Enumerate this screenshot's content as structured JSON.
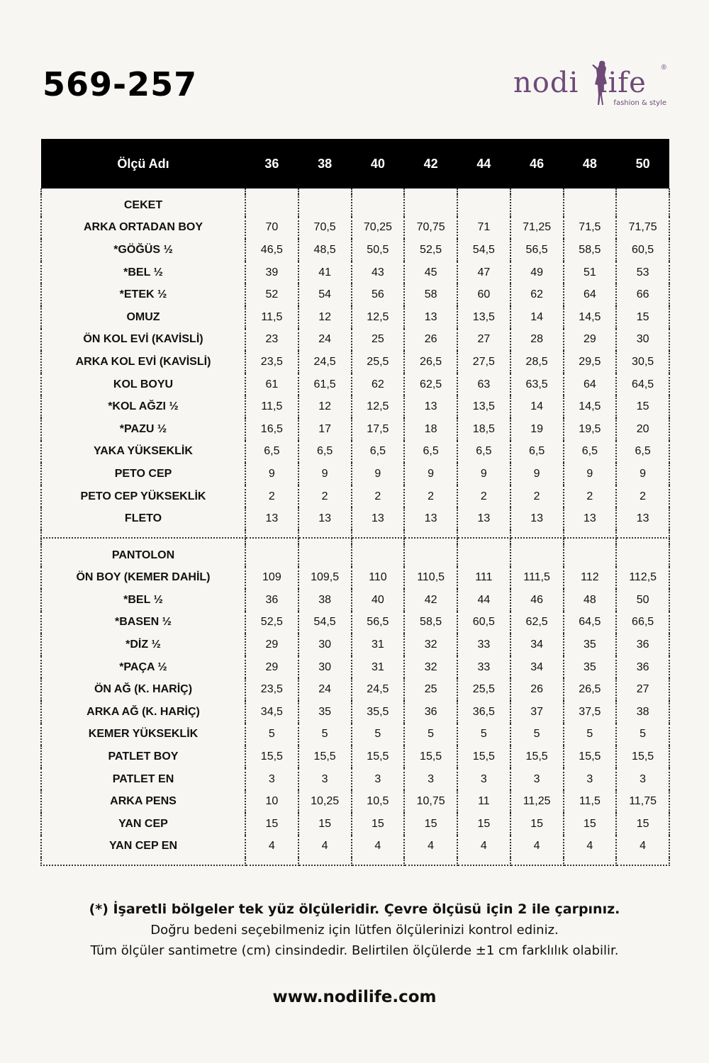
{
  "product_code": "569-257",
  "logo": {
    "text": "nodi life",
    "tagline": "fashion & style",
    "color": "#6e4a78"
  },
  "table": {
    "header": {
      "name": "Ölçü Adı",
      "sizes": [
        "36",
        "38",
        "40",
        "42",
        "44",
        "46",
        "48",
        "50"
      ]
    },
    "sections": [
      {
        "title": "CEKET",
        "rows": [
          {
            "label": "ARKA ORTADAN BOY",
            "values": [
              "70",
              "70,5",
              "70,25",
              "70,75",
              "71",
              "71,25",
              "71,5",
              "71,75"
            ]
          },
          {
            "label": "*GÖĞÜS ½",
            "values": [
              "46,5",
              "48,5",
              "50,5",
              "52,5",
              "54,5",
              "56,5",
              "58,5",
              "60,5"
            ]
          },
          {
            "label": "*BEL ½",
            "values": [
              "39",
              "41",
              "43",
              "45",
              "47",
              "49",
              "51",
              "53"
            ]
          },
          {
            "label": "*ETEK ½",
            "values": [
              "52",
              "54",
              "56",
              "58",
              "60",
              "62",
              "64",
              "66"
            ]
          },
          {
            "label": "OMUZ",
            "values": [
              "11,5",
              "12",
              "12,5",
              "13",
              "13,5",
              "14",
              "14,5",
              "15"
            ]
          },
          {
            "label": "ÖN KOL EVİ (KAVİSLİ)",
            "values": [
              "23",
              "24",
              "25",
              "26",
              "27",
              "28",
              "29",
              "30"
            ]
          },
          {
            "label": "ARKA KOL EVİ (KAVİSLİ)",
            "values": [
              "23,5",
              "24,5",
              "25,5",
              "26,5",
              "27,5",
              "28,5",
              "29,5",
              "30,5"
            ]
          },
          {
            "label": "KOL BOYU",
            "values": [
              "61",
              "61,5",
              "62",
              "62,5",
              "63",
              "63,5",
              "64",
              "64,5"
            ]
          },
          {
            "label": "*KOL AĞZI ½",
            "values": [
              "11,5",
              "12",
              "12,5",
              "13",
              "13,5",
              "14",
              "14,5",
              "15"
            ]
          },
          {
            "label": "*PAZU ½",
            "values": [
              "16,5",
              "17",
              "17,5",
              "18",
              "18,5",
              "19",
              "19,5",
              "20"
            ]
          },
          {
            "label": "YAKA YÜKSEKLİK",
            "values": [
              "6,5",
              "6,5",
              "6,5",
              "6,5",
              "6,5",
              "6,5",
              "6,5",
              "6,5"
            ]
          },
          {
            "label": "PETO CEP",
            "values": [
              "9",
              "9",
              "9",
              "9",
              "9",
              "9",
              "9",
              "9"
            ]
          },
          {
            "label": "PETO CEP YÜKSEKLİK",
            "values": [
              "2",
              "2",
              "2",
              "2",
              "2",
              "2",
              "2",
              "2"
            ]
          },
          {
            "label": "FLETO",
            "values": [
              "13",
              "13",
              "13",
              "13",
              "13",
              "13",
              "13",
              "13"
            ]
          }
        ]
      },
      {
        "title": "PANTOLON",
        "rows": [
          {
            "label": "ÖN BOY (KEMER DAHİL)",
            "values": [
              "109",
              "109,5",
              "110",
              "110,5",
              "111",
              "111,5",
              "112",
              "112,5"
            ]
          },
          {
            "label": "*BEL ½",
            "values": [
              "36",
              "38",
              "40",
              "42",
              "44",
              "46",
              "48",
              "50"
            ]
          },
          {
            "label": "*BASEN ½",
            "values": [
              "52,5",
              "54,5",
              "56,5",
              "58,5",
              "60,5",
              "62,5",
              "64,5",
              "66,5"
            ]
          },
          {
            "label": "*DİZ ½",
            "values": [
              "29",
              "30",
              "31",
              "32",
              "33",
              "34",
              "35",
              "36"
            ]
          },
          {
            "label": "*PAÇA ½",
            "values": [
              "29",
              "30",
              "31",
              "32",
              "33",
              "34",
              "35",
              "36"
            ]
          },
          {
            "label": "ÖN AĞ (K. HARİÇ)",
            "values": [
              "23,5",
              "24",
              "24,5",
              "25",
              "25,5",
              "26",
              "26,5",
              "27"
            ]
          },
          {
            "label": "ARKA AĞ (K. HARİÇ)",
            "values": [
              "34,5",
              "35",
              "35,5",
              "36",
              "36,5",
              "37",
              "37,5",
              "38"
            ]
          },
          {
            "label": "KEMER YÜKSEKLİK",
            "values": [
              "5",
              "5",
              "5",
              "5",
              "5",
              "5",
              "5",
              "5"
            ]
          },
          {
            "label": "PATLET BOY",
            "values": [
              "15,5",
              "15,5",
              "15,5",
              "15,5",
              "15,5",
              "15,5",
              "15,5",
              "15,5"
            ]
          },
          {
            "label": "PATLET EN",
            "values": [
              "3",
              "3",
              "3",
              "3",
              "3",
              "3",
              "3",
              "3"
            ]
          },
          {
            "label": "ARKA PENS",
            "values": [
              "10",
              "10,25",
              "10,5",
              "10,75",
              "11",
              "11,25",
              "11,5",
              "11,75"
            ]
          },
          {
            "label": "YAN CEP",
            "values": [
              "15",
              "15",
              "15",
              "15",
              "15",
              "15",
              "15",
              "15"
            ]
          },
          {
            "label": "YAN CEP EN",
            "values": [
              "4",
              "4",
              "4",
              "4",
              "4",
              "4",
              "4",
              "4"
            ]
          }
        ]
      }
    ]
  },
  "notes": [
    "(*) İşaretli bölgeler tek yüz ölçüleridir. Çevre ölçüsü için 2 ile çarpınız.",
    "Doğru bedeni seçebilmeniz için lütfen ölçülerinizi kontrol ediniz.",
    "Tüm ölçüler santimetre (cm) cinsindedir. Belirtilen ölçülerde ±1 cm farklılık olabilir."
  ],
  "website": "www.nodilife.com"
}
